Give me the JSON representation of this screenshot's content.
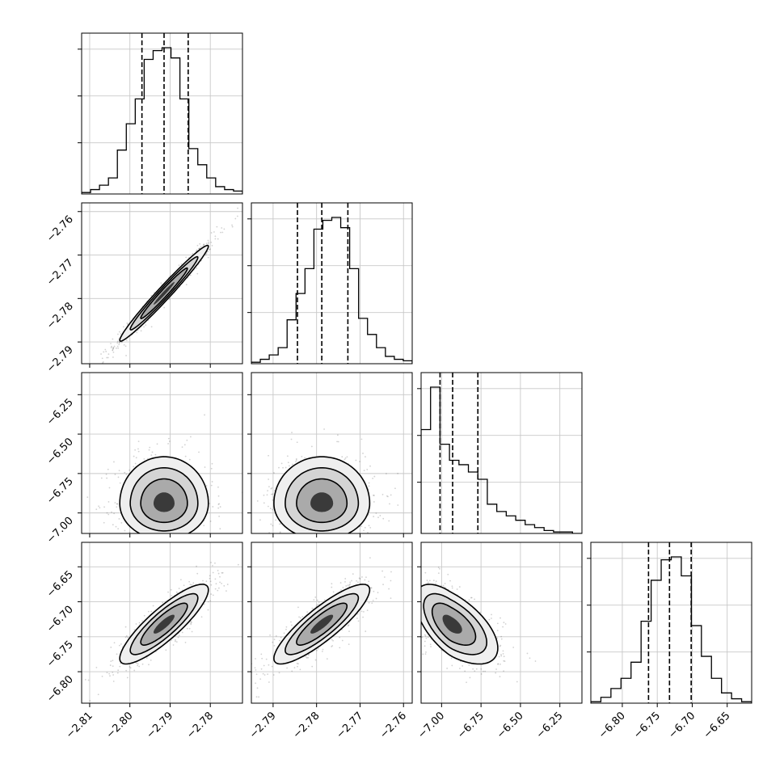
{
  "chart_data": {
    "type": "corner",
    "grid": true,
    "parameters": [
      {
        "range": [
          -2.812,
          -2.772
        ],
        "ticks": [
          -2.81,
          -2.8,
          -2.79,
          -2.78
        ],
        "tick_labels": [
          "−2.81",
          "−2.80",
          "−2.79",
          "−2.78"
        ]
      },
      {
        "range": [
          -2.795,
          -2.758
        ],
        "ticks": [
          -2.79,
          -2.78,
          -2.77,
          -2.76
        ],
        "tick_labels": [
          "−2.79",
          "−2.78",
          "−2.77",
          "−2.76"
        ]
      },
      {
        "range": [
          -7.13,
          -6.11
        ],
        "ticks": [
          -7.0,
          -6.75,
          -6.5,
          -6.25
        ],
        "tick_labels": [
          "−7.00",
          "−6.75",
          "−6.50",
          "−6.25"
        ]
      },
      {
        "range": [
          -6.845,
          -6.615
        ],
        "ticks": [
          -6.8,
          -6.75,
          -6.7,
          -6.65
        ],
        "tick_labels": [
          "−6.80",
          "−6.75",
          "−6.70",
          "−6.65"
        ]
      }
    ],
    "histograms": [
      {
        "param": 0,
        "quantiles": [
          -2.797,
          -2.7915,
          -2.7855
        ],
        "counts": [
          0.01,
          0.03,
          0.06,
          0.11,
          0.3,
          0.48,
          0.65,
          0.92,
          0.98,
          1.0,
          0.93,
          0.65,
          0.31,
          0.2,
          0.11,
          0.05,
          0.03,
          0.02
        ]
      },
      {
        "param": 1,
        "quantiles": [
          -2.7844,
          -2.7788,
          -2.7728
        ],
        "counts": [
          0.01,
          0.03,
          0.06,
          0.11,
          0.3,
          0.48,
          0.65,
          0.92,
          0.98,
          1.0,
          0.93,
          0.65,
          0.31,
          0.2,
          0.11,
          0.05,
          0.03,
          0.02
        ]
      },
      {
        "param": 2,
        "quantiles": [
          -7.01,
          -6.93,
          -6.77
        ],
        "counts": [
          0.71,
          1.0,
          0.61,
          0.5,
          0.47,
          0.42,
          0.37,
          0.2,
          0.15,
          0.12,
          0.09,
          0.06,
          0.04,
          0.02,
          0.01,
          0.01,
          0.0
        ]
      },
      {
        "param": 3,
        "quantiles": [
          -6.7625,
          -6.7325,
          -6.7015
        ],
        "counts": [
          0.01,
          0.04,
          0.1,
          0.17,
          0.28,
          0.56,
          0.84,
          0.98,
          1.0,
          0.87,
          0.53,
          0.32,
          0.17,
          0.07,
          0.03,
          0.01
        ]
      }
    ],
    "pairs": [
      {
        "x": 0,
        "y": 1,
        "center": [
          -2.7915,
          -2.7788
        ],
        "spread": [
          0.0058,
          0.0058
        ],
        "correlation": 0.98,
        "skew": 0
      },
      {
        "x": 0,
        "y": 2,
        "center": [
          -2.7915,
          -6.94
        ],
        "spread": [
          0.0058,
          0.12
        ],
        "correlation": 0.0,
        "skew": 1.3
      },
      {
        "x": 1,
        "y": 2,
        "center": [
          -2.7788,
          -6.94
        ],
        "spread": [
          0.0058,
          0.12
        ],
        "correlation": 0.0,
        "skew": 1.3
      },
      {
        "x": 0,
        "y": 3,
        "center": [
          -2.7915,
          -6.732
        ],
        "spread": [
          0.0058,
          0.03
        ],
        "correlation": 0.86,
        "skew": 0
      },
      {
        "x": 1,
        "y": 3,
        "center": [
          -2.7788,
          -6.732
        ],
        "spread": [
          0.0058,
          0.03
        ],
        "correlation": 0.86,
        "skew": 0
      },
      {
        "x": 2,
        "y": 3,
        "center": [
          -6.94,
          -6.732
        ],
        "spread": [
          0.12,
          0.03
        ],
        "correlation": -0.6,
        "skew": 1.3
      }
    ]
  }
}
